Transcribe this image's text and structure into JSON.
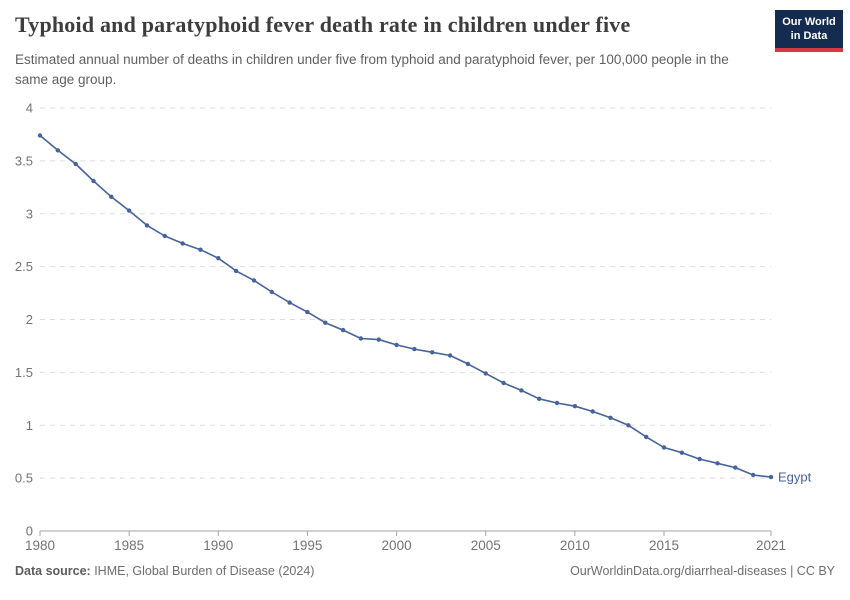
{
  "header": {
    "title": "Typhoid and paratyphoid fever death rate in children under five",
    "subtitle": "Estimated annual number of deaths in children under five from typhoid and paratyphoid fever, per 100,000 people in the same age group.",
    "logo": {
      "line1": "Our World",
      "line2": "in Data",
      "bg_color": "#132c4f",
      "bar_color": "#d93744",
      "text_color": "#ffffff"
    }
  },
  "chart_data": {
    "type": "line",
    "title": "Typhoid and paratyphoid fever death rate in children under five",
    "xlabel": "",
    "ylabel": "",
    "xlim": [
      1980,
      2021
    ],
    "ylim": [
      0,
      4
    ],
    "grid": "horizontal-dashed",
    "x_ticks": [
      1980,
      1985,
      1990,
      1995,
      2000,
      2005,
      2010,
      2015,
      2021
    ],
    "y_tick_labels": [
      "0",
      "0.5",
      "1",
      "1.5",
      "2",
      "2.5",
      "3",
      "3.5",
      "4"
    ],
    "series": [
      {
        "name": "Egypt",
        "color": "#46639b",
        "end_label": "Egypt",
        "years": [
          1980,
          1981,
          1982,
          1983,
          1984,
          1985,
          1986,
          1987,
          1988,
          1989,
          1990,
          1991,
          1992,
          1993,
          1994,
          1995,
          1996,
          1997,
          1998,
          1999,
          2000,
          2001,
          2002,
          2003,
          2004,
          2005,
          2006,
          2007,
          2008,
          2009,
          2010,
          2011,
          2012,
          2013,
          2014,
          2015,
          2016,
          2017,
          2018,
          2019,
          2020,
          2021
        ],
        "values": [
          3.74,
          3.6,
          3.47,
          3.31,
          3.16,
          3.03,
          2.89,
          2.79,
          2.72,
          2.66,
          2.58,
          2.46,
          2.37,
          2.26,
          2.16,
          2.07,
          1.97,
          1.9,
          1.82,
          1.81,
          1.76,
          1.72,
          1.69,
          1.66,
          1.58,
          1.49,
          1.4,
          1.33,
          1.25,
          1.21,
          1.18,
          1.13,
          1.07,
          1.0,
          0.89,
          0.79,
          0.74,
          0.68,
          0.64,
          0.6,
          0.53,
          0.51
        ]
      }
    ],
    "colors": {
      "line": "#46639b",
      "grid": "#dddddd",
      "axis": "#a6a6a6",
      "tick_label": "#737373"
    }
  },
  "footer": {
    "source_label": "Data source:",
    "source_value": " IHME, Global Burden of Disease (2024)",
    "link": "OurWorldinData.org/diarrheal-diseases | CC BY"
  }
}
